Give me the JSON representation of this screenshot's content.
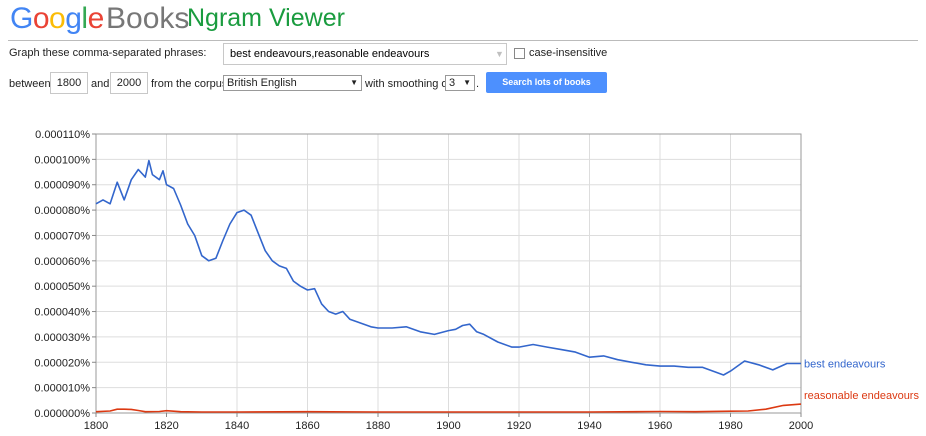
{
  "header": {
    "logo_letters": [
      "G",
      "o",
      "o",
      "g",
      "l",
      "e"
    ],
    "books": "Books",
    "title": "Ngram Viewer"
  },
  "query": {
    "phrases_label": "Graph these comma-separated phrases:",
    "phrases_value": "best endeavours,reasonable endeavours",
    "case_insensitive_label": "case-insensitive",
    "case_insensitive_checked": false,
    "between_label": "between",
    "year_start": "1800",
    "and_label": "and",
    "year_end": "2000",
    "corpus_label": "from the corpus",
    "corpus_value": "British English",
    "smoothing_label": "with smoothing of",
    "smoothing_value": "3",
    "period": ".",
    "search_button": "Search lots of books"
  },
  "chart_data": {
    "type": "line",
    "xlim": [
      1800,
      2000
    ],
    "ylim": [
      0,
      0.00011
    ],
    "x_ticks": [
      "1800",
      "1820",
      "1840",
      "1860",
      "1880",
      "1900",
      "1920",
      "1940",
      "1960",
      "1980",
      "2000"
    ],
    "y_ticks": [
      "0.000000%",
      "0.000010%",
      "0.000020%",
      "0.000030%",
      "0.000040%",
      "0.000050%",
      "0.000060%",
      "0.000070%",
      "0.000080%",
      "0.000090%",
      "0.000100%",
      "0.000110%"
    ],
    "grid": true,
    "series": [
      {
        "name": "best endeavours",
        "color": "#3366cc",
        "x": [
          1800,
          1802,
          1804,
          1806,
          1808,
          1810,
          1812,
          1814,
          1815,
          1816,
          1818,
          1819,
          1820,
          1822,
          1824,
          1826,
          1828,
          1830,
          1832,
          1834,
          1836,
          1838,
          1840,
          1841,
          1842,
          1844,
          1846,
          1848,
          1850,
          1852,
          1854,
          1856,
          1858,
          1860,
          1862,
          1864,
          1866,
          1868,
          1870,
          1872,
          1874,
          1876,
          1878,
          1880,
          1884,
          1888,
          1892,
          1896,
          1900,
          1902,
          1904,
          1906,
          1908,
          1910,
          1914,
          1918,
          1920,
          1924,
          1928,
          1932,
          1936,
          1940,
          1944,
          1948,
          1952,
          1956,
          1960,
          1964,
          1968,
          1972,
          1976,
          1978,
          1980,
          1984,
          1988,
          1992,
          1996,
          2000
        ],
        "y": [
          8.25e-05,
          8.4e-05,
          8.25e-05,
          9.1e-05,
          8.4e-05,
          9.2e-05,
          9.6e-05,
          9.3e-05,
          9.95e-05,
          9.4e-05,
          9.2e-05,
          9.55e-05,
          9e-05,
          8.85e-05,
          8.2e-05,
          7.45e-05,
          7e-05,
          6.2e-05,
          6e-05,
          6.1e-05,
          6.8e-05,
          7.45e-05,
          7.9e-05,
          7.95e-05,
          8e-05,
          7.8e-05,
          7.1e-05,
          6.4e-05,
          6e-05,
          5.8e-05,
          5.7e-05,
          5.2e-05,
          5e-05,
          4.85e-05,
          4.9e-05,
          4.3e-05,
          4e-05,
          3.9e-05,
          4e-05,
          3.7e-05,
          3.6e-05,
          3.5e-05,
          3.4e-05,
          3.35e-05,
          3.35e-05,
          3.4e-05,
          3.2e-05,
          3.1e-05,
          3.25e-05,
          3.3e-05,
          3.45e-05,
          3.5e-05,
          3.2e-05,
          3.1e-05,
          2.8e-05,
          2.6e-05,
          2.6e-05,
          2.7e-05,
          2.6e-05,
          2.5e-05,
          2.4e-05,
          2.2e-05,
          2.25e-05,
          2.1e-05,
          2e-05,
          1.9e-05,
          1.85e-05,
          1.85e-05,
          1.8e-05,
          1.8e-05,
          1.6e-05,
          1.5e-05,
          1.65e-05,
          2.05e-05,
          1.9e-05,
          1.7e-05,
          1.95e-05,
          1.95e-05
        ]
      },
      {
        "name": "reasonable endeavours",
        "color": "#dc3912",
        "x": [
          1800,
          1804,
          1806,
          1808,
          1810,
          1812,
          1814,
          1818,
          1820,
          1824,
          1830,
          1840,
          1860,
          1880,
          1900,
          1920,
          1940,
          1960,
          1970,
          1980,
          1985,
          1990,
          1995,
          2000
        ],
        "y": [
          5e-07,
          8e-07,
          1.5e-06,
          1.5e-06,
          1.4e-06,
          1e-06,
          5e-07,
          6e-07,
          9e-07,
          5e-07,
          4e-07,
          4e-07,
          5e-07,
          4e-07,
          4e-07,
          4e-07,
          4e-07,
          6e-07,
          5e-07,
          7e-07,
          8e-07,
          1.5e-06,
          3e-06,
          3.5e-06
        ]
      }
    ]
  }
}
